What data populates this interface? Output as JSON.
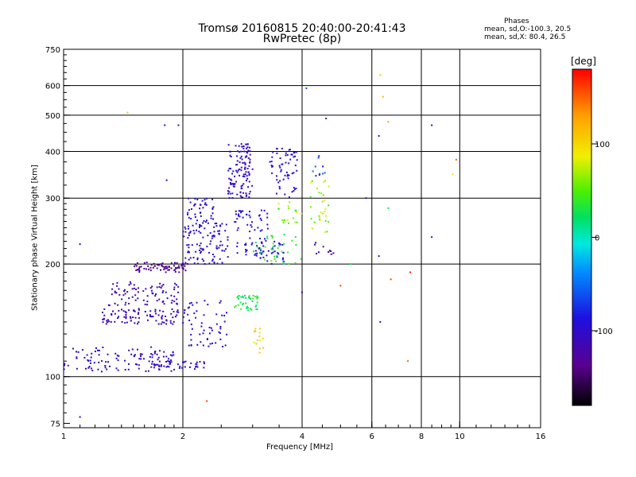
{
  "title_line1": "Tromsø 20160815 20:40:00-20:41:43",
  "title_line2": "RwPretec (8p)",
  "phases": {
    "heading": "Phases",
    "o_mode": "mean, sd,O:-100.3, 20.5",
    "x_mode": "mean, sd,X: 80.4, 26.5"
  },
  "chart_data": {
    "type": "scatter",
    "xlabel": "Frequency [MHz]",
    "ylabel": "Stationary phase Virtual Height [km]",
    "x_scale": "log",
    "y_scale": "log",
    "xlim": [
      1,
      16
    ],
    "ylim": [
      73,
      750
    ],
    "x_ticks": [
      {
        "v": 1,
        "label": "1"
      },
      {
        "v": 2,
        "label": "2"
      },
      {
        "v": 4,
        "label": "4"
      },
      {
        "v": 6,
        "label": "6"
      },
      {
        "v": 8,
        "label": "8"
      },
      {
        "v": 10,
        "label": "10"
      },
      {
        "v": 16,
        "label": "16"
      }
    ],
    "x_grid": [
      2,
      4,
      6,
      8,
      10
    ],
    "y_ticks": [
      {
        "v": 75,
        "label": "75"
      },
      {
        "v": 100,
        "label": "100"
      },
      {
        "v": 200,
        "label": "200"
      },
      {
        "v": 300,
        "label": "300"
      },
      {
        "v": 400,
        "label": "400"
      },
      {
        "v": 500,
        "label": "500"
      },
      {
        "v": 600,
        "label": "600"
      },
      {
        "v": 750,
        "label": "750"
      }
    ],
    "y_grid": [
      100,
      200,
      300,
      400,
      500,
      600
    ],
    "grid": true,
    "colorbar": {
      "unit": "[deg]",
      "range": [
        -180,
        180
      ],
      "ticks": [
        {
          "v": 100,
          "label": "100"
        },
        {
          "v": 0,
          "label": "0"
        },
        {
          "v": -100,
          "label": "-100"
        }
      ]
    },
    "clusters": [
      {
        "f": [
          1.0,
          1.9
        ],
        "h": [
          103,
          120
        ],
        "phase": [
          -120,
          -95
        ],
        "n": 110
      },
      {
        "f": [
          1.25,
          1.95
        ],
        "h": [
          138,
          152
        ],
        "phase": [
          -125,
          -100
        ],
        "n": 90
      },
      {
        "f": [
          1.3,
          2.0
        ],
        "h": [
          155,
          180
        ],
        "phase": [
          -125,
          -100
        ],
        "n": 80
      },
      {
        "f": [
          1.5,
          2.05
        ],
        "h": [
          190,
          202
        ],
        "phase": [
          -150,
          -120
        ],
        "n": 70
      },
      {
        "f": [
          1.7,
          2.3
        ],
        "h": [
          104,
          110
        ],
        "phase": [
          -110,
          -90
        ],
        "n": 40
      },
      {
        "f": [
          2.0,
          2.6
        ],
        "h": [
          120,
          160
        ],
        "phase": [
          -115,
          -90
        ],
        "n": 60
      },
      {
        "f": [
          2.0,
          2.6
        ],
        "h": [
          200,
          260
        ],
        "phase": [
          -110,
          -85
        ],
        "n": 110
      },
      {
        "f": [
          2.05,
          2.4
        ],
        "h": [
          260,
          300
        ],
        "phase": [
          -110,
          -80
        ],
        "n": 40
      },
      {
        "f": [
          2.6,
          3.0
        ],
        "h": [
          300,
          420
        ],
        "phase": [
          -115,
          -90
        ],
        "n": 120
      },
      {
        "f": [
          2.7,
          3.3
        ],
        "h": [
          210,
          280
        ],
        "phase": [
          -110,
          -85
        ],
        "n": 70
      },
      {
        "f": [
          3.0,
          3.6
        ],
        "h": [
          200,
          230
        ],
        "phase": [
          -100,
          -80
        ],
        "n": 30
      },
      {
        "f": [
          3.3,
          3.9
        ],
        "h": [
          300,
          410
        ],
        "phase": [
          -110,
          -85
        ],
        "n": 60
      },
      {
        "f": [
          2.7,
          3.1
        ],
        "h": [
          150,
          165
        ],
        "phase": [
          10,
          50
        ],
        "n": 40
      },
      {
        "f": [
          3.0,
          3.2
        ],
        "h": [
          115,
          135
        ],
        "phase": [
          80,
          120
        ],
        "n": 14
      },
      {
        "f": [
          3.0,
          4.0
        ],
        "h": [
          200,
          240
        ],
        "phase": [
          15,
          60
        ],
        "n": 35
      },
      {
        "f": [
          3.4,
          4.0
        ],
        "h": [
          255,
          295
        ],
        "phase": [
          40,
          90
        ],
        "n": 20
      },
      {
        "f": [
          4.2,
          4.7
        ],
        "h": [
          240,
          340
        ],
        "phase": [
          40,
          95
        ],
        "n": 30
      },
      {
        "f": [
          4.3,
          4.8
        ],
        "h": [
          210,
          230
        ],
        "phase": [
          -130,
          -100
        ],
        "n": 10
      },
      {
        "f": [
          4.2,
          4.6
        ],
        "h": [
          340,
          390
        ],
        "phase": [
          -90,
          -50
        ],
        "n": 10
      }
    ],
    "isolated_points": [
      {
        "f": 1.1,
        "h": 226,
        "phase": -110
      },
      {
        "f": 1.1,
        "h": 78,
        "phase": -100
      },
      {
        "f": 1.45,
        "h": 508,
        "phase": 110
      },
      {
        "f": 1.8,
        "h": 470,
        "phase": -110
      },
      {
        "f": 1.82,
        "h": 335,
        "phase": -110
      },
      {
        "f": 1.95,
        "h": 470,
        "phase": -90
      },
      {
        "f": 2.3,
        "h": 86,
        "phase": 160
      },
      {
        "f": 4.0,
        "h": 168,
        "phase": -120
      },
      {
        "f": 4.1,
        "h": 590,
        "phase": -60
      },
      {
        "f": 4.6,
        "h": 490,
        "phase": -120
      },
      {
        "f": 5.0,
        "h": 175,
        "phase": 160
      },
      {
        "f": 5.3,
        "h": 200,
        "phase": 30
      },
      {
        "f": 5.8,
        "h": 300,
        "phase": -100
      },
      {
        "f": 6.3,
        "h": 640,
        "phase": 110
      },
      {
        "f": 6.4,
        "h": 560,
        "phase": 120
      },
      {
        "f": 6.6,
        "h": 480,
        "phase": 130
      },
      {
        "f": 6.25,
        "h": 440,
        "phase": -120
      },
      {
        "f": 6.25,
        "h": 210,
        "phase": -110
      },
      {
        "f": 6.3,
        "h": 140,
        "phase": -110
      },
      {
        "f": 6.6,
        "h": 282,
        "phase": 30
      },
      {
        "f": 6.7,
        "h": 182,
        "phase": 160
      },
      {
        "f": 7.4,
        "h": 110,
        "phase": 150
      },
      {
        "f": 7.5,
        "h": 190,
        "phase": 170
      },
      {
        "f": 8.5,
        "h": 470,
        "phase": -120
      },
      {
        "f": 8.5,
        "h": 236,
        "phase": -110
      },
      {
        "f": 9.6,
        "h": 348,
        "phase": 90
      },
      {
        "f": 9.8,
        "h": 380,
        "phase": 150
      }
    ]
  }
}
